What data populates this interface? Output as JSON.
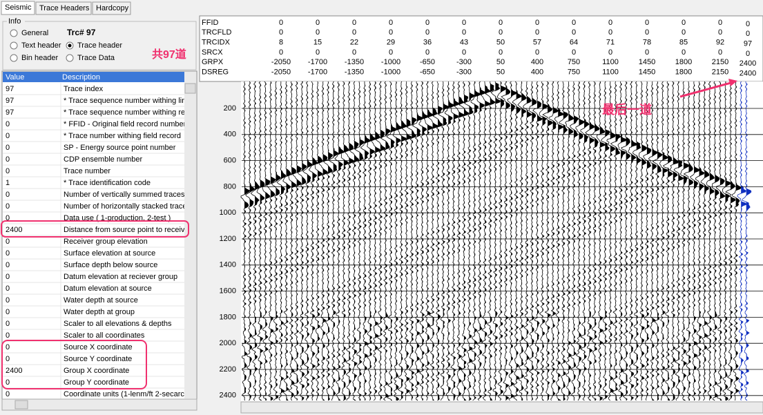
{
  "tabs": [
    "Seismic",
    "Trace Headers",
    "Hardcopy"
  ],
  "info": {
    "title": "Info",
    "options": [
      "General",
      "Text header",
      "Bin header",
      "Trace header",
      "Trace Data"
    ],
    "trace_label": "Trc# 97"
  },
  "annotations": {
    "trace_count": "共97道",
    "last_trace": "最后一道"
  },
  "table": {
    "columns": [
      "Value",
      "Description"
    ],
    "rows": [
      [
        "97",
        "Trace index"
      ],
      [
        "97",
        "* Trace sequence number withing line"
      ],
      [
        "97",
        "* Trace sequence number withing ree"
      ],
      [
        "0",
        "* FFID - Original field record number"
      ],
      [
        "0",
        "* Trace number withing field record"
      ],
      [
        "0",
        "SP - Energy source point number"
      ],
      [
        "0",
        "CDP ensemble  number"
      ],
      [
        "0",
        "Trace  number"
      ],
      [
        "1",
        "* Trace identification code"
      ],
      [
        "0",
        "Number of vertically summed traces"
      ],
      [
        "0",
        "Number of horizontally stacked trace"
      ],
      [
        "0",
        "Data use ( 1-production, 2-test )"
      ],
      [
        "2400",
        "Distance from source point to receiv"
      ],
      [
        "0",
        "Receiver group elevation"
      ],
      [
        "0",
        "Surface elevation at source"
      ],
      [
        "0",
        "Surface depth below source"
      ],
      [
        "0",
        "Datum elevation at reciever group"
      ],
      [
        "0",
        "Datum elevation at source"
      ],
      [
        "0",
        "Water depth at source"
      ],
      [
        "0",
        "Water depth at group"
      ],
      [
        "0",
        "Scaler to all elevations & depths"
      ],
      [
        "0",
        "Scaler to all coordinates"
      ],
      [
        "0",
        "Source X coordinate"
      ],
      [
        "0",
        "Source Y coordinate"
      ],
      [
        "2400",
        "Group  X coordinate"
      ],
      [
        "0",
        "Group  Y coordinate"
      ],
      [
        "0",
        "Coordinate units (1-lenm/ft 2-secarc"
      ]
    ]
  },
  "headers": {
    "rows": [
      {
        "name": "FFID",
        "values": [
          0,
          0,
          0,
          0,
          0,
          0,
          0,
          0,
          0,
          0,
          0,
          0,
          0
        ],
        "current": 0
      },
      {
        "name": "TRCFLD",
        "values": [
          0,
          0,
          0,
          0,
          0,
          0,
          0,
          0,
          0,
          0,
          0,
          0,
          0
        ],
        "current": 0
      },
      {
        "name": "TRCIDX",
        "values": [
          8,
          15,
          22,
          29,
          36,
          43,
          50,
          57,
          64,
          71,
          78,
          85,
          92
        ],
        "current": 97
      },
      {
        "name": "SRCX",
        "values": [
          0,
          0,
          0,
          0,
          0,
          0,
          0,
          0,
          0,
          0,
          0,
          0,
          0
        ],
        "current": 0
      },
      {
        "name": "GRPX",
        "values": [
          -2050,
          -1700,
          -1350,
          -1000,
          -650,
          -300,
          50,
          400,
          750,
          1100,
          1450,
          1800,
          2150
        ],
        "current": 2400
      },
      {
        "name": "DSREG",
        "values": [
          -2050,
          -1700,
          -1350,
          -1000,
          -650,
          -300,
          50,
          400,
          750,
          1100,
          1450,
          1800,
          2150
        ],
        "current": 2400
      }
    ]
  },
  "depth_ticks": [
    200,
    400,
    600,
    800,
    1000,
    1200,
    1400,
    1600,
    1800,
    2000,
    2200,
    2400
  ]
}
